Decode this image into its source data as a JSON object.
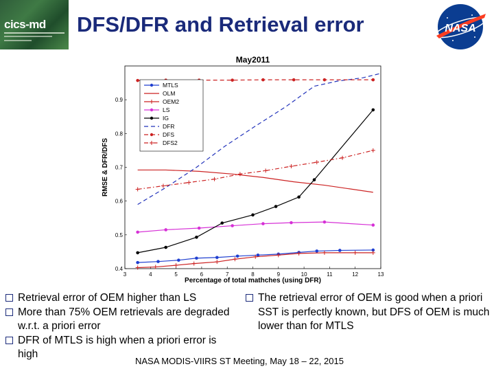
{
  "header": {
    "title": "DFS/DFR and Retrieval error",
    "logo_left_text": "cics-md",
    "logo_right_text": "NASA"
  },
  "chart_data": {
    "type": "line",
    "title": "May2011",
    "xlabel": "Percentage of total mathches (using DFR)",
    "ylabel": "RMSE & DFR/DFS",
    "xlim": [
      3,
      13
    ],
    "ylim": [
      0.4,
      1.0
    ],
    "xticks": [
      "3",
      "4",
      "5",
      "6",
      "7",
      "8",
      "9",
      "10",
      "11",
      "12",
      "13"
    ],
    "yticks": [
      "0.4",
      "0.5",
      "0.6",
      "0.7",
      "0.8",
      "0.9"
    ],
    "legend_position": "top-left",
    "series": [
      {
        "name": "MTLS",
        "color": "#1f3fd0",
        "dash": "solid",
        "marker": "dot",
        "x": [
          3.5,
          4.3,
          5.1,
          5.8,
          6.6,
          7.4,
          8.2,
          9.0,
          9.8,
          10.5,
          11.4,
          12.7
        ],
        "y": [
          0.418,
          0.421,
          0.425,
          0.431,
          0.433,
          0.437,
          0.44,
          0.443,
          0.448,
          0.452,
          0.454,
          0.455
        ]
      },
      {
        "name": "OLM",
        "color": "#cc2222",
        "dash": "solid",
        "marker": "none",
        "x": [
          3.5,
          4.6,
          5.9,
          7.2,
          8.4,
          9.6,
          10.8,
          12.7
        ],
        "y": [
          0.692,
          0.692,
          0.688,
          0.68,
          0.67,
          0.657,
          0.647,
          0.626
        ]
      },
      {
        "name": "OEM2",
        "color": "#cc2222",
        "dash": "solid",
        "marker": "plus",
        "x": [
          3.5,
          4.2,
          5.0,
          5.7,
          6.6,
          7.3,
          8.1,
          9.0,
          9.8,
          10.8,
          12.0,
          12.7
        ],
        "y": [
          0.403,
          0.405,
          0.41,
          0.415,
          0.42,
          0.428,
          0.435,
          0.44,
          0.445,
          0.447,
          0.447,
          0.447
        ]
      },
      {
        "name": "LS",
        "color": "#d630d6",
        "dash": "solid",
        "marker": "dot",
        "x": [
          3.5,
          4.6,
          5.9,
          7.2,
          8.4,
          9.5,
          10.8,
          12.7
        ],
        "y": [
          0.508,
          0.515,
          0.52,
          0.527,
          0.533,
          0.536,
          0.538,
          0.529
        ]
      },
      {
        "name": "IG",
        "color": "#000000",
        "dash": "solid",
        "marker": "dot",
        "x": [
          3.5,
          4.6,
          5.8,
          6.8,
          8.0,
          8.9,
          9.8,
          10.4,
          12.7
        ],
        "y": [
          0.447,
          0.463,
          0.493,
          0.535,
          0.559,
          0.584,
          0.612,
          0.663,
          0.87
        ]
      },
      {
        "name": "DFR",
        "color": "#2233bb",
        "dash": "dashed",
        "marker": "none",
        "x": [
          3.5,
          4.6,
          5.8,
          6.9,
          8.1,
          9.3,
          10.4,
          11.3,
          12.3,
          13.0
        ],
        "y": [
          0.59,
          0.64,
          0.7,
          0.762,
          0.822,
          0.88,
          0.94,
          0.955,
          0.965,
          0.978
        ]
      },
      {
        "name": "DFS",
        "color": "#cc2222",
        "dash": "dashed",
        "marker": "dot",
        "x": [
          3.5,
          4.6,
          5.9,
          7.2,
          8.4,
          9.6,
          10.8,
          12.7
        ],
        "y": [
          0.957,
          0.958,
          0.958,
          0.958,
          0.959,
          0.959,
          0.959,
          0.959
        ]
      },
      {
        "name": "DFS2",
        "color": "#cc2222",
        "dash": "dashdot",
        "marker": "plus",
        "x": [
          3.5,
          4.5,
          5.5,
          6.5,
          7.5,
          8.5,
          9.5,
          10.5,
          11.5,
          12.7
        ],
        "y": [
          0.635,
          0.645,
          0.655,
          0.665,
          0.68,
          0.69,
          0.703,
          0.715,
          0.728,
          0.75
        ]
      }
    ]
  },
  "bullets_left": [
    "Retrieval error of OEM higher than LS",
    "More than 75% OEM retrievals are degraded w.r.t. a priori error",
    "DFR of MTLS is high when a priori error is high"
  ],
  "bullets_right": [
    "The retrieval error of OEM is good when a priori SST is perfectly known, but DFS of OEM is much lower than for MTLS"
  ],
  "footer": "NASA MODIS-VIIRS ST Meeting, May 18 – 22, 2015"
}
